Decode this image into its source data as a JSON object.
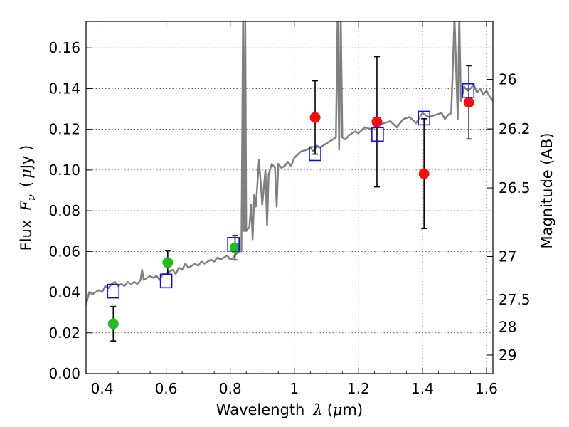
{
  "chart_data": {
    "type": "scatter",
    "xlabel": "Wavelength",
    "xlabel_symbol": "λ",
    "xlabel_unit_open": "(",
    "xlabel_unit_mu": "μ",
    "xlabel_unit_rest": "m)",
    "ylabel": "Flux",
    "ylabel_symbol": "F",
    "ylabel_subscript": "ν",
    "ylabel_unit_open": "(",
    "ylabel_unit_mu": "μ",
    "ylabel_unit_rest": "Jy )",
    "y2label": "Magnitude (AB)",
    "xlim": [
      0.35,
      1.62
    ],
    "ylim": [
      0.0,
      0.173
    ],
    "grid": true,
    "x_ticks": [
      0.4,
      0.6,
      0.8,
      1.0,
      1.2,
      1.4,
      1.6
    ],
    "x_tick_labels": [
      "0.4",
      "0.6",
      "0.8",
      "1",
      "1.2",
      "1.4",
      "1.6"
    ],
    "y_ticks": [
      0.0,
      0.02,
      0.04,
      0.06,
      0.08,
      0.1,
      0.12,
      0.14,
      0.16
    ],
    "y_tick_labels": [
      "0.00",
      "0.02",
      "0.04",
      "0.06",
      "0.08",
      "0.10",
      "0.12",
      "0.14",
      "0.16"
    ],
    "y2_ticks": [
      {
        "label": "26",
        "flux": 0.1445
      },
      {
        "label": "26.2",
        "flux": 0.1202
      },
      {
        "label": "26.5",
        "flux": 0.0912
      },
      {
        "label": "27",
        "flux": 0.0575
      },
      {
        "label": "27.5",
        "flux": 0.0363
      },
      {
        "label": "28",
        "flux": 0.0229
      },
      {
        "label": "29",
        "flux": 0.0091
      }
    ],
    "colors": {
      "model": "#808080",
      "green": "#22bb22",
      "red": "#ee1111",
      "box": "#1111cc",
      "err": "#000000"
    },
    "series": [
      {
        "marker": "circle",
        "color": "#22bb22",
        "x": [
          0.435,
          0.605,
          0.815
        ],
        "y": [
          0.0245,
          0.0545,
          0.0618
        ],
        "yerr": [
          0.0085,
          0.006,
          0.006
        ]
      },
      {
        "marker": "circle",
        "color": "#ee1111",
        "x": [
          1.065,
          1.258,
          1.405,
          1.545
        ],
        "y": [
          0.1258,
          0.1237,
          0.0982,
          0.1332
        ],
        "yerr": [
          0.018,
          0.032,
          0.027,
          0.018
        ]
      },
      {
        "marker": "open-square",
        "color": "#1111cc",
        "x": [
          0.435,
          0.6,
          0.81,
          1.065,
          1.26,
          1.405,
          1.543
        ],
        "y": [
          0.0405,
          0.0455,
          0.0635,
          0.108,
          0.1175,
          0.1255,
          0.139
        ]
      }
    ],
    "model_spectrum": {
      "color": "#808080",
      "x": [
        0.35,
        0.36,
        0.37,
        0.38,
        0.39,
        0.4,
        0.41,
        0.42,
        0.43,
        0.44,
        0.45,
        0.46,
        0.47,
        0.48,
        0.49,
        0.5,
        0.51,
        0.52,
        0.525,
        0.53,
        0.54,
        0.55,
        0.56,
        0.57,
        0.58,
        0.59,
        0.6,
        0.61,
        0.62,
        0.63,
        0.64,
        0.65,
        0.66,
        0.67,
        0.68,
        0.69,
        0.7,
        0.71,
        0.72,
        0.73,
        0.74,
        0.75,
        0.76,
        0.77,
        0.78,
        0.79,
        0.8,
        0.81,
        0.82,
        0.83,
        0.835,
        0.84,
        0.843,
        0.847,
        0.85,
        0.86,
        0.865,
        0.87,
        0.875,
        0.88,
        0.89,
        0.9,
        0.91,
        0.915,
        0.92,
        0.93,
        0.94,
        0.945,
        0.95,
        0.96,
        0.97,
        0.98,
        0.99,
        1.0,
        1.02,
        1.04,
        1.05,
        1.06,
        1.07,
        1.08,
        1.09,
        1.1,
        1.11,
        1.12,
        1.13,
        1.135,
        1.14,
        1.145,
        1.15,
        1.16,
        1.17,
        1.18,
        1.19,
        1.2,
        1.22,
        1.24,
        1.26,
        1.28,
        1.3,
        1.32,
        1.34,
        1.36,
        1.38,
        1.4,
        1.42,
        1.44,
        1.46,
        1.47,
        1.48,
        1.49,
        1.5,
        1.51,
        1.515,
        1.52,
        1.525,
        1.53,
        1.54,
        1.55,
        1.56,
        1.57,
        1.58,
        1.59,
        1.6,
        1.61,
        1.62
      ],
      "y": [
        0.034,
        0.04,
        0.039,
        0.04,
        0.041,
        0.04,
        0.043,
        0.042,
        0.044,
        0.045,
        0.043,
        0.044,
        0.043,
        0.045,
        0.044,
        0.045,
        0.044,
        0.046,
        0.051,
        0.046,
        0.047,
        0.048,
        0.047,
        0.048,
        0.046,
        0.049,
        0.049,
        0.05,
        0.051,
        0.049,
        0.052,
        0.051,
        0.054,
        0.052,
        0.053,
        0.054,
        0.053,
        0.055,
        0.054,
        0.055,
        0.056,
        0.055,
        0.057,
        0.056,
        0.057,
        0.058,
        0.056,
        0.057,
        0.059,
        0.06,
        0.06,
        0.175,
        0.07,
        0.175,
        0.07,
        0.072,
        0.083,
        0.066,
        0.088,
        0.082,
        0.105,
        0.083,
        0.1,
        0.073,
        0.098,
        0.103,
        0.101,
        0.082,
        0.103,
        0.101,
        0.102,
        0.104,
        0.102,
        0.106,
        0.109,
        0.11,
        0.111,
        0.109,
        0.112,
        0.111,
        0.112,
        0.113,
        0.114,
        0.115,
        0.116,
        0.175,
        0.11,
        0.175,
        0.116,
        0.115,
        0.117,
        0.118,
        0.119,
        0.118,
        0.121,
        0.12,
        0.122,
        0.123,
        0.124,
        0.121,
        0.125,
        0.126,
        0.123,
        0.128,
        0.126,
        0.127,
        0.128,
        0.125,
        0.127,
        0.128,
        0.175,
        0.125,
        0.175,
        0.134,
        0.137,
        0.141,
        0.139,
        0.14,
        0.142,
        0.138,
        0.14,
        0.137,
        0.139,
        0.136,
        0.134
      ]
    }
  }
}
